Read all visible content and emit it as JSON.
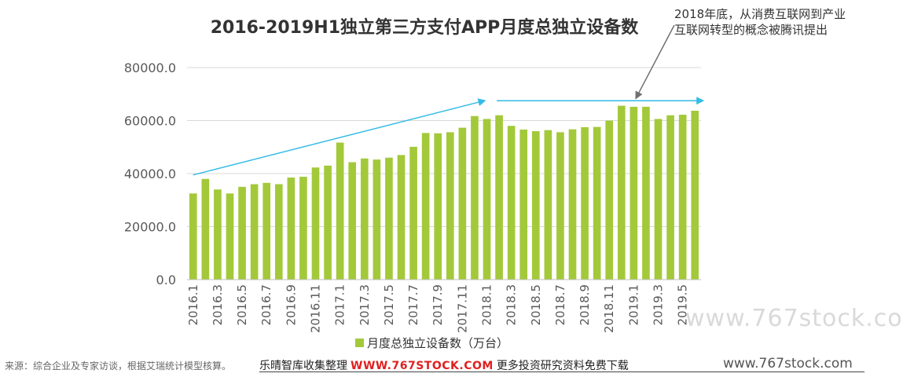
{
  "chart_data": {
    "type": "bar",
    "title": "2016-2019H1独立第三方支付APP月度总独立设备数",
    "legend": "月度总独立设备数（万台）",
    "legend_position": "bottom",
    "categories": [
      "2016.1",
      "2016.2",
      "2016.3",
      "2016.4",
      "2016.5",
      "2016.6",
      "2016.7",
      "2016.8",
      "2016.9",
      "2016.10",
      "2016.11",
      "2016.12",
      "2017.1",
      "2017.2",
      "2017.3",
      "2017.4",
      "2017.5",
      "2017.6",
      "2017.7",
      "2017.8",
      "2017.9",
      "2017.10",
      "2017.11",
      "2017.12",
      "2018.1",
      "2018.2",
      "2018.3",
      "2018.4",
      "2018.5",
      "2018.6",
      "2018.7",
      "2018.8",
      "2018.9",
      "2018.10",
      "2018.11",
      "2018.12",
      "2019.1",
      "2019.2",
      "2019.3",
      "2019.4",
      "2019.5",
      "2019.6"
    ],
    "visible_tick_labels": [
      "2016.1",
      "2016.3",
      "2016.5",
      "2016.7",
      "2016.9",
      "2016.11",
      "2017.1",
      "2017.3",
      "2017.5",
      "2017.7",
      "2017.9",
      "2017.11",
      "2018.1",
      "2018.3",
      "2018.5",
      "2018.7",
      "2018.9",
      "2018.11",
      "2019.1",
      "2019.3",
      "2019.5"
    ],
    "values": [
      32500,
      38000,
      34000,
      32500,
      35000,
      36000,
      36500,
      36000,
      38500,
      38800,
      42300,
      43000,
      51700,
      44300,
      45700,
      45300,
      46000,
      47000,
      50100,
      55300,
      55200,
      55600,
      57300,
      61700,
      60600,
      62000,
      58000,
      56600,
      56000,
      56400,
      55600,
      56700,
      57500,
      57600,
      60000,
      65600,
      65200,
      65200,
      60600,
      62000,
      62200,
      63700
    ],
    "ylim": [
      0,
      80000
    ],
    "yticks": [
      "0.0",
      "20000.0",
      "40000.0",
      "60000.0",
      "80000.0"
    ],
    "grid": "horizontal",
    "bar_color": "#a3c93a",
    "trend_arrow_color": "#33bbe6",
    "annotation": "2018年底，从消费互联网到产业互联网转型的概念被腾讯提出"
  },
  "watermark": "www.767stock.co",
  "footer": {
    "source": "来源：综合企业及专家访谈，根据艾瑞统计模型核算。",
    "banner_left": "乐晴智库收集整理",
    "banner_site": "WWW.767STOCK.COM",
    "banner_right": "更多投资研究资料免费下载",
    "site_right": "www.767stock.com"
  }
}
